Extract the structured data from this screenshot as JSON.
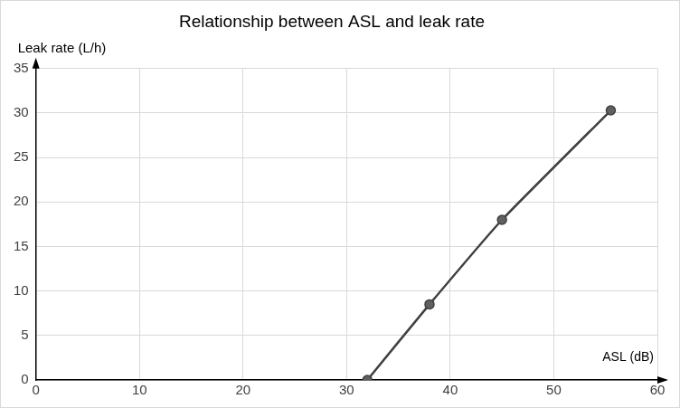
{
  "chart_data": {
    "type": "line",
    "title": "Relationship between ASL and leak rate",
    "x_label": "ASL (dB)",
    "y_label": "Leak rate (L/h)",
    "x": [
      32,
      38,
      45,
      55.5
    ],
    "values": [
      0,
      8.5,
      18,
      30.3
    ],
    "color": "#404040",
    "marker": "circle",
    "xlim": [
      0,
      60
    ],
    "xticks": [
      0,
      10,
      20,
      30,
      40,
      50,
      60
    ],
    "ylim": [
      0,
      35
    ],
    "yticks": [
      0,
      5,
      10,
      15,
      20,
      25,
      30,
      35
    ],
    "grid": true
  }
}
